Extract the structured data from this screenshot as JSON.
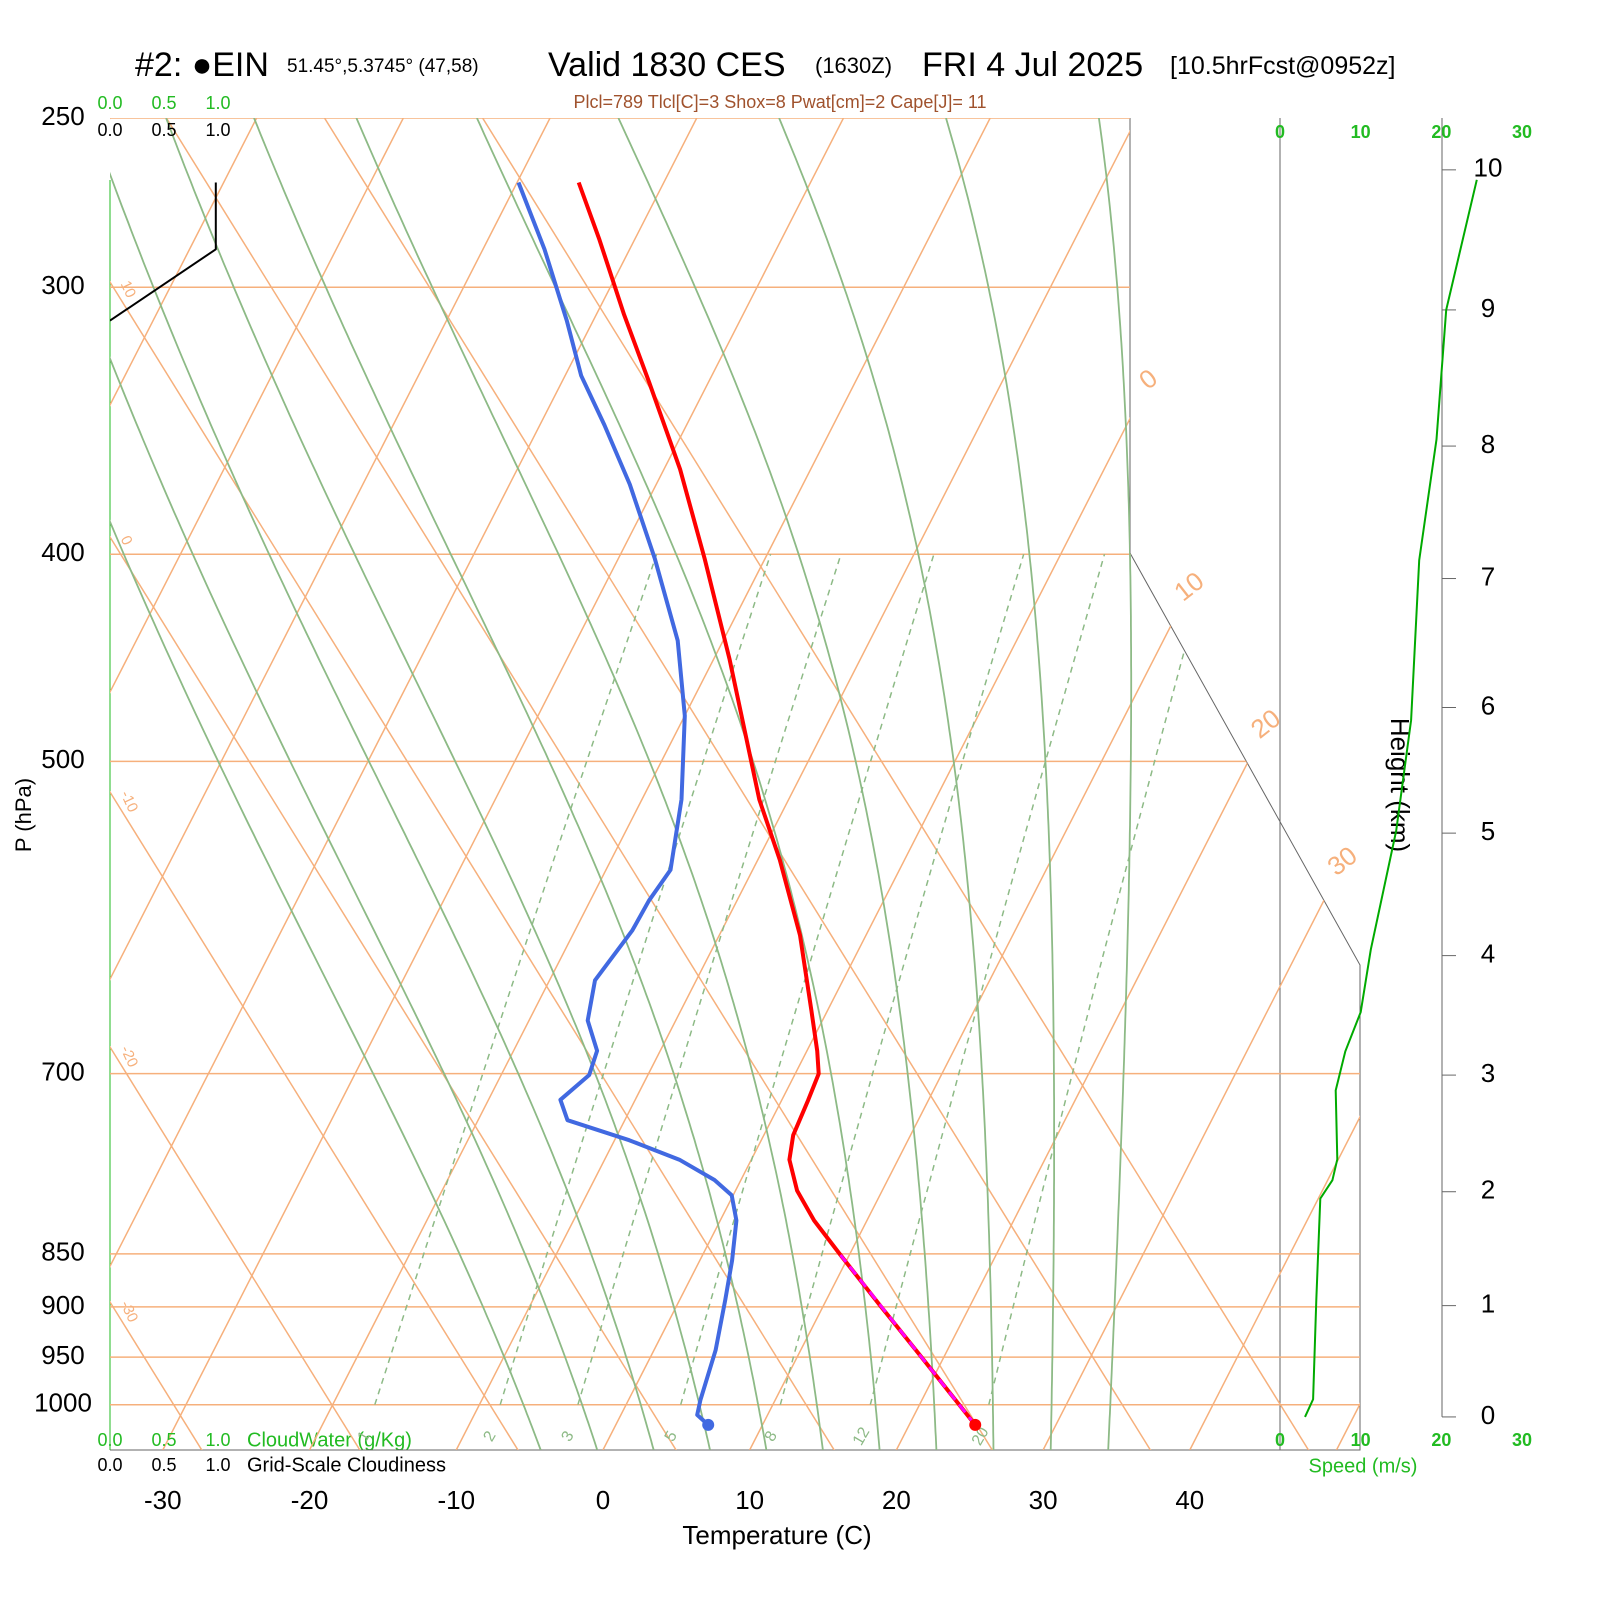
{
  "chart_data": {
    "type": "skewt",
    "title_parts": [
      "#2: ●EIN",
      "51.45°,5.3745° (47,58)",
      "Valid 1830 CES",
      "(1630Z)",
      "FRI 4 Jul 2025",
      "[10.5hrFcst@0952z]"
    ],
    "subtitle": "Plcl=789 Tlcl[C]=3 Shox=8 Pwat[cm]=2 Cape[J]= 11",
    "x_label": "Temperature (C)",
    "y_label": "P (hPa)",
    "xlim": [
      -33.6,
      51.6
    ],
    "xticks": [
      -30,
      -20,
      -10,
      0,
      10,
      20,
      30,
      40
    ],
    "ylim": [
      1050,
      250
    ],
    "yticks": [
      250,
      300,
      400,
      500,
      700,
      850,
      900,
      950,
      1000
    ],
    "y_log": true,
    "isotherms": [
      -80,
      -70,
      -60,
      -50,
      -40,
      -30,
      -20,
      -10,
      0,
      10,
      20,
      30,
      40,
      50
    ],
    "isotherm_labels": [
      0,
      10,
      20,
      30
    ],
    "cross_lines": [
      -30,
      -20,
      -10,
      0,
      10,
      20,
      30,
      40
    ],
    "moist_adiabats": [
      -7,
      -3,
      1,
      5,
      9,
      13,
      17,
      21,
      25,
      29,
      33
    ],
    "mixing_ratios": [
      1,
      2,
      3,
      5,
      8,
      12,
      20
    ],
    "temperature": {
      "color": "#ff0000",
      "pressure": [
        268,
        285,
        309,
        332,
        365,
        402,
        448,
        521,
        556,
        603,
        654,
        683,
        700,
        720,
        748,
        768,
        794,
        820,
        851,
        898,
        948,
        1022
      ],
      "values": [
        -45.8,
        -42.4,
        -38.1,
        -34.1,
        -28.9,
        -24.1,
        -18.9,
        -12.0,
        -8.5,
        -4.5,
        -1.1,
        0.7,
        1.6,
        1.8,
        2.0,
        2.6,
        4.2,
        6.4,
        9.4,
        13.8,
        18.3,
        24.5
      ]
    },
    "dewpoint": {
      "color": "#4169e1",
      "pressure": [
        268,
        288,
        311,
        330,
        348,
        371,
        402,
        439,
        476,
        521,
        562,
        581,
        600,
        633,
        661,
        683,
        701,
        720,
        736,
        752,
        768,
        785,
        798,
        820,
        856,
        893,
        943,
        995,
        1011,
        1022
      ],
      "values": [
        -49.9,
        -45.8,
        -41.8,
        -38.9,
        -35.6,
        -31.8,
        -27.5,
        -23.1,
        -20.0,
        -17.3,
        -15.6,
        -16.0,
        -16.1,
        -16.9,
        -16.0,
        -14.3,
        -14.0,
        -15.1,
        -13.9,
        -9.0,
        -4.9,
        -1.8,
        -0.1,
        1.1,
        2.2,
        3.1,
        4.2,
        4.9,
        5.2,
        6.3
      ]
    },
    "parcel": {
      "color": "#ff00ff",
      "pressure": [
        1022,
        851
      ],
      "values": [
        24.5,
        9.4
      ]
    },
    "cloudiness": {
      "color": "#000000",
      "pressure": [
        268,
        288,
        311
      ],
      "values": [
        0.98,
        0.98,
        0
      ]
    },
    "cloud_xlim": [
      0,
      1
    ],
    "cloud_ticks": [
      {
        "value": 0,
        "label": "0.0"
      },
      0.5,
      {
        "value": 1,
        "label": "1.0"
      }
    ],
    "cloudwater_label": "CloudWater (g/Kg)",
    "cloudiness_label": "Grid-Scale Cloudiness",
    "speed": {
      "label": "Speed (m/s)",
      "color": "#00aa00",
      "xlim": [
        0,
        30
      ],
      "xticks": [
        0,
        10,
        20,
        30
      ],
      "height": [
        0,
        0.16,
        1.05,
        1.5,
        1.94,
        2.1,
        2.28,
        2.87,
        3.2,
        3.53,
        4.05,
        5.02,
        5.9,
        7.14,
        8.05,
        9.0,
        9.93
      ],
      "values": [
        3.1,
        4.1,
        4.5,
        4.75,
        5.0,
        6.5,
        7.1,
        6.9,
        8.1,
        10.0,
        11.25,
        14.4,
        16.25,
        17.25,
        19.4,
        20.6,
        24.4
      ]
    },
    "height": {
      "label": "Height (km)",
      "ticks": [
        0,
        1,
        2,
        3,
        4,
        5,
        6,
        7,
        8,
        9,
        10
      ]
    }
  }
}
